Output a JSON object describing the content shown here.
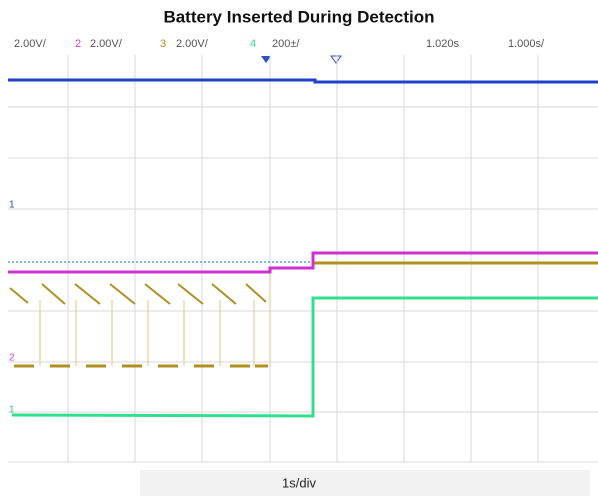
{
  "title": "Battery Inserted During Detection",
  "header": {
    "ch1_scale": "2.00V/",
    "ch2_num": "2",
    "ch2_scale": "2.00V/",
    "ch3_num": "3",
    "ch3_scale": "2.00V/",
    "ch4_num": "4",
    "time_scale": "200±/",
    "delay": "1.020s",
    "timebase": "1.000s/"
  },
  "markers": {
    "ch1": "1",
    "ch2": "2",
    "ch4": "1"
  },
  "footer": "1s/div"
}
